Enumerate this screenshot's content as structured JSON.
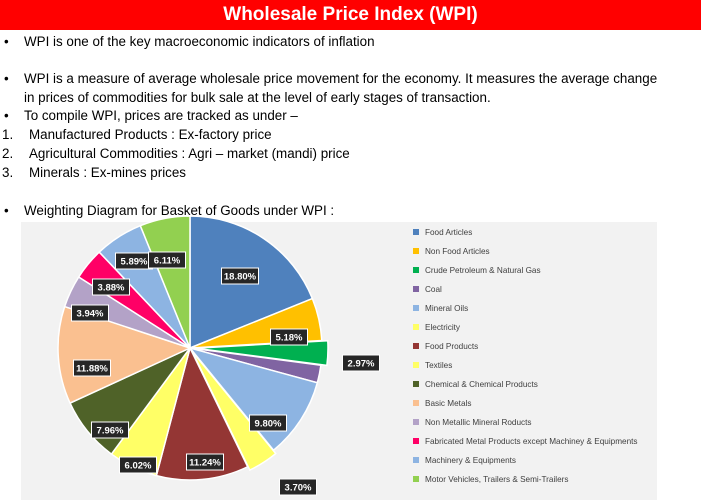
{
  "header": {
    "title": "Wholesale Price Index (WPI)"
  },
  "content": {
    "bullet_1": "WPI is one of the key macroeconomic indicators of inflation",
    "bullet_2_line_1": "WPI is a measure of average wholesale price movement for the economy. It measures the average change",
    "bullet_2_line_2": "in prices of commodities for bulk sale at the level of early stages of transaction.",
    "bullet_3": "To compile WPI, prices are tracked as under –",
    "list": [
      {
        "num": "1.",
        "text": "Manufactured Products : Ex-factory price"
      },
      {
        "num": "2.",
        "text": "Agricultural Commodities : Agri – market (mandi) price"
      },
      {
        "num": "3.",
        "text": "Minerals : Ex-mines prices"
      }
    ],
    "bullet_4": "Weighting Diagram for Basket of Goods under WPI :",
    "bullet_symbol": "•"
  },
  "chart_data": {
    "type": "pie",
    "title": "",
    "categories": [
      "Food Articles",
      "Non Food Articles",
      "Crude Petroleum & Natural Gas",
      "Coal",
      "Mineral Oils",
      "Electricity",
      "Food Products",
      "Textiles",
      "Chemical & Chemical Products",
      "Basic Metals",
      "Non Metallic Mineral Roducts",
      "Fabricated Metal Products except Machiney & Equipments",
      "Machinery & Equipments",
      "Motor Vehicles,  Trailers & Semi-Trailers"
    ],
    "values": [
      18.8,
      5.18,
      2.97,
      2.15,
      9.8,
      3.7,
      11.24,
      6.02,
      7.96,
      11.88,
      3.94,
      3.88,
      5.89,
      6.11
    ],
    "data_labels": [
      "18.80%",
      "5.18%",
      "2.97%",
      "",
      "9.80%",
      "3.70%",
      "11.24%",
      "6.02%",
      "7.96%",
      "11.88%",
      "3.94%",
      "3.88%",
      "5.89%",
      "6.11%"
    ],
    "colors": [
      "#4f81bd",
      "#ffc000",
      "#00b050",
      "#8064a2",
      "#8db4e2",
      "#ffff66",
      "#943634",
      "#ffff66",
      "#4f6228",
      "#fac090",
      "#b3a2c7",
      "#ff0066",
      "#8db4e2",
      "#92d050"
    ],
    "legend_position": "right"
  }
}
